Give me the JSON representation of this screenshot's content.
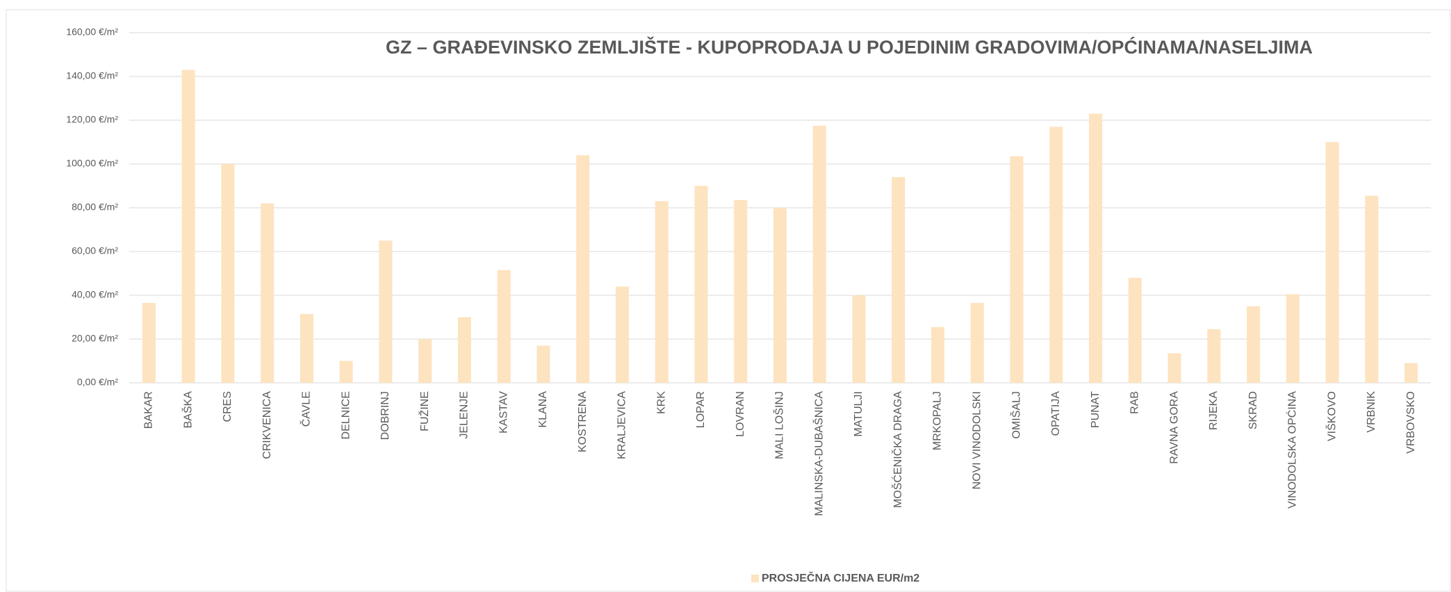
{
  "chart_data": {
    "type": "bar",
    "title": "GZ – GRAĐEVINSKO ZEMLJIŠTE - KUPOPRODAJA  U POJEDINIM GRADOVIMA/OPĆINAMA/NASELJIMA",
    "categories": [
      "BAKAR",
      "BAŠKA",
      "CRES",
      "CRIKVENICA",
      "ČAVLE",
      "DELNICE",
      "DOBRINJ",
      "FUŽINE",
      "JELENJE",
      "KASTAV",
      "KLANA",
      "KOSTRENA",
      "KRALJEVICA",
      "KRK",
      "LOPAR",
      "LOVRAN",
      "MALI LOŠINJ",
      "MALINSKA-DUBAŠNICA",
      "MATULJI",
      "MOŠĆENIČKA DRAGA",
      "MRKOPALJ",
      "NOVI VINODOLSKI",
      "OMIŠALJ",
      "OPATIJA",
      "PUNAT",
      "RAB",
      "RAVNA GORA",
      "RIJEKA",
      "SKRAD",
      "VINODOLSKA OPĆINA",
      "VIŠKOVO",
      "VRBNIK",
      "VRBOVSKO"
    ],
    "series": [
      {
        "name": "PROSJEČNA CIJENA EUR/m2",
        "color": "#fde3bf",
        "values": [
          36.5,
          143,
          100,
          82,
          31.5,
          10,
          65,
          20,
          30,
          51.5,
          17,
          104,
          44,
          83,
          90,
          83.5,
          80,
          117.5,
          40,
          94,
          25.5,
          36.5,
          103.5,
          117,
          123,
          48,
          13.5,
          24.5,
          35,
          40.5,
          110,
          85.5,
          9
        ]
      }
    ],
    "ylim": [
      0,
      160
    ],
    "yticks": [
      {
        "value": 0,
        "label": "0,00 €/m²"
      },
      {
        "value": 20,
        "label": "20,00 €/m²"
      },
      {
        "value": 40,
        "label": "40,00 €/m²"
      },
      {
        "value": 60,
        "label": "60,00 €/m²"
      },
      {
        "value": 80,
        "label": "80,00 €/m²"
      },
      {
        "value": 100,
        "label": "100,00 €/m²"
      },
      {
        "value": 120,
        "label": "120,00 €/m²"
      },
      {
        "value": 140,
        "label": "140,00 €/m²"
      },
      {
        "value": 160,
        "label": "160,00 €/m²"
      }
    ],
    "grid": true,
    "legend": "bottom"
  }
}
